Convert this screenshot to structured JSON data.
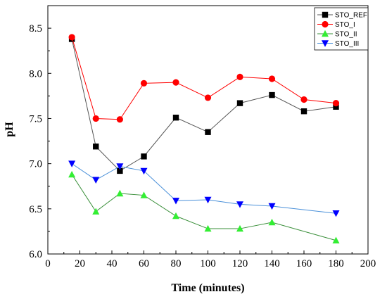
{
  "chart_data": {
    "type": "line",
    "xlabel": "Time (minutes)",
    "ylabel": "pH",
    "xlim": [
      0,
      200
    ],
    "ylim": [
      6.0,
      8.75
    ],
    "xticks": [
      0,
      20,
      40,
      60,
      80,
      100,
      120,
      140,
      160,
      180,
      200
    ],
    "yticks": [
      6.0,
      6.5,
      7.0,
      7.5,
      8.0,
      8.5
    ],
    "x_tick_labels": [
      "0",
      "20",
      "40",
      "60",
      "80",
      "100",
      "120",
      "140",
      "160",
      "180",
      "200"
    ],
    "y_tick_labels": [
      "6.0",
      "6.5",
      "7.0",
      "7.5",
      "8.0",
      "8.5"
    ],
    "grid": false,
    "legend_position": "top-right",
    "series": [
      {
        "name": "STO_REF",
        "marker": "square",
        "line_color": "#555555",
        "marker_color": "#000000",
        "x": [
          15,
          30,
          45,
          60,
          80,
          100,
          120,
          140,
          160,
          180
        ],
        "y": [
          8.38,
          7.19,
          6.92,
          7.08,
          7.51,
          7.35,
          7.67,
          7.76,
          7.58,
          7.63
        ]
      },
      {
        "name": "STO_I",
        "marker": "circle",
        "line_color": "#ff0000",
        "marker_color": "#ff0000",
        "x": [
          15,
          30,
          45,
          60,
          80,
          100,
          120,
          140,
          160,
          180
        ],
        "y": [
          8.4,
          7.5,
          7.49,
          7.89,
          7.9,
          7.73,
          7.96,
          7.94,
          7.71,
          7.67
        ]
      },
      {
        "name": "STO_II",
        "marker": "triangle-up",
        "line_color": "#3a8f3a",
        "marker_color": "#33ee33",
        "x": [
          15,
          30,
          45,
          60,
          80,
          100,
          120,
          140,
          160,
          180
        ],
        "y": [
          6.88,
          6.47,
          6.67,
          6.65,
          6.42,
          6.28,
          6.28,
          6.35,
          null,
          6.15
        ]
      },
      {
        "name": "STO_III",
        "marker": "triangle-down",
        "line_color": "#4a90d9",
        "marker_color": "#0000ff",
        "x": [
          15,
          30,
          45,
          60,
          80,
          100,
          120,
          140,
          160,
          180
        ],
        "y": [
          7.0,
          6.82,
          6.97,
          6.92,
          6.59,
          6.6,
          6.55,
          6.53,
          null,
          6.45
        ]
      }
    ]
  }
}
